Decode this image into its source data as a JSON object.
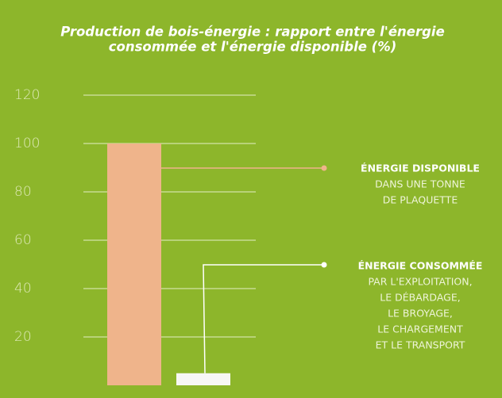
{
  "chart_data": {
    "type": "bar",
    "title": [
      "Production de bois-énergie : rapport entre l'énergie",
      "consommée et l'énergie disponible (%)"
    ],
    "categories": [
      null,
      null
    ],
    "values": [
      100,
      5
    ],
    "colors": [
      "#efb48b",
      "#f7f7f4"
    ],
    "ylim": [
      0,
      120
    ],
    "yticks": [
      20,
      40,
      60,
      80,
      100,
      120
    ],
    "grid": true,
    "annotations": [
      {
        "title": "ÉNERGIE DISPONIBLE",
        "lines": [
          "DANS UNE TONNE",
          "DE PLAQUETTE"
        ]
      },
      {
        "title": "ÉNERGIE CONSOMMÉE",
        "lines": [
          "PAR L'EXPLOITATION,",
          "LE DÉBARDAGE,",
          "LE BROYAGE,",
          "LE CHARGEMENT",
          "ET LE TRANSPORT"
        ]
      }
    ]
  }
}
